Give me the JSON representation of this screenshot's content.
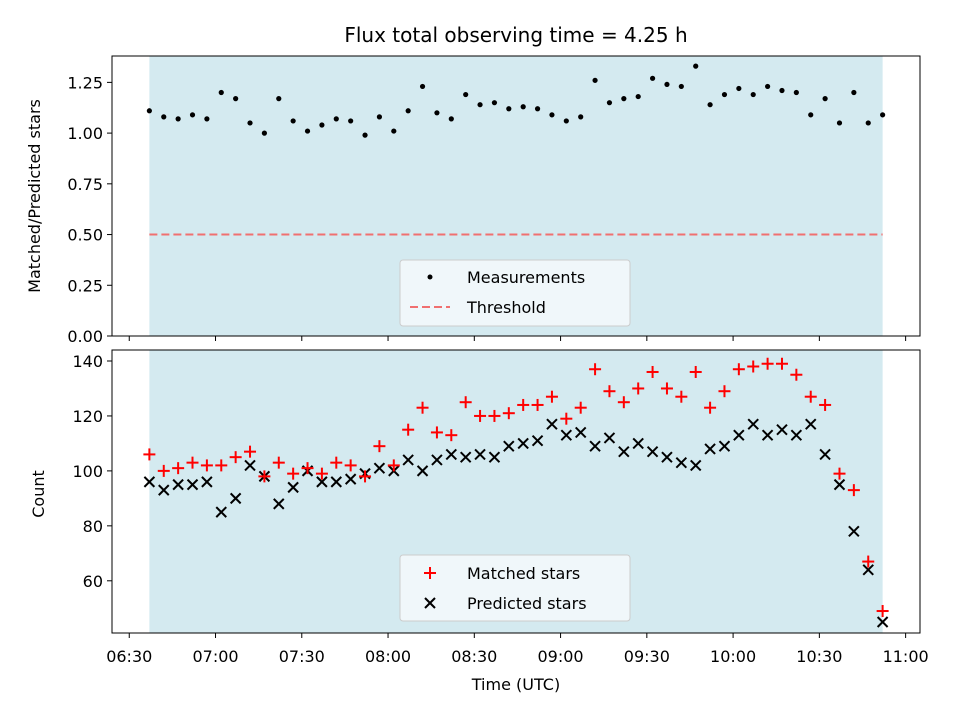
{
  "chart_data": {
    "type": "scatter",
    "title": "Flux total observing time = 4.25 h",
    "xlabel": "Time (UTC)",
    "xlim_minutes": [
      384,
      665
    ],
    "x_tick_labels": [
      "06:30",
      "07:00",
      "07:30",
      "08:00",
      "08:30",
      "09:00",
      "09:30",
      "10:00",
      "10:30",
      "11:00"
    ],
    "x_tick_minutes": [
      390,
      420,
      450,
      480,
      510,
      540,
      570,
      600,
      630,
      660
    ],
    "observing_window_minutes": [
      397,
      652
    ],
    "observing_window_color": "#d4eaf0",
    "x_minutes": [
      397,
      402,
      407,
      412,
      417,
      422,
      427,
      432,
      437,
      442,
      447,
      452,
      457,
      462,
      467,
      472,
      477,
      482,
      487,
      492,
      497,
      502,
      507,
      512,
      517,
      522,
      527,
      532,
      537,
      542,
      547,
      552,
      557,
      562,
      567,
      572,
      577,
      582,
      587,
      592,
      597,
      602,
      607,
      612,
      617,
      622,
      627,
      632,
      637,
      642,
      647,
      652
    ],
    "panels": [
      {
        "ylabel": "Matched/Predicted stars",
        "ylim": [
          0,
          1.38
        ],
        "y_tick_labels": [
          "0.00",
          "0.25",
          "0.50",
          "0.75",
          "1.00",
          "1.25"
        ],
        "y_ticks": [
          0,
          0.25,
          0.5,
          0.75,
          1.0,
          1.25
        ],
        "threshold": 0.5,
        "threshold_color": "#f07070",
        "series": [
          {
            "name": "Measurements",
            "marker": "dot",
            "color": "#000000",
            "values": [
              1.11,
              1.08,
              1.07,
              1.09,
              1.07,
              1.2,
              1.17,
              1.05,
              1.0,
              1.17,
              1.06,
              1.01,
              1.04,
              1.07,
              1.06,
              0.99,
              1.08,
              1.01,
              1.11,
              1.23,
              1.1,
              1.07,
              1.19,
              1.14,
              1.15,
              1.12,
              1.13,
              1.12,
              1.09,
              1.06,
              1.08,
              1.26,
              1.15,
              1.17,
              1.18,
              1.27,
              1.24,
              1.23,
              1.33,
              1.14,
              1.19,
              1.22,
              1.19,
              1.23,
              1.21,
              1.2,
              1.09,
              1.17,
              1.05,
              1.2,
              1.05,
              1.09
            ]
          }
        ],
        "legend": [
          {
            "label": "Measurements",
            "marker": "dot",
            "color": "#000000"
          },
          {
            "label": "Threshold",
            "marker": "dashed-line",
            "color": "#f07070"
          }
        ],
        "legend_placement": "lower-center"
      },
      {
        "ylabel": "Count",
        "ylim": [
          41,
          144
        ],
        "y_tick_labels": [
          "60",
          "80",
          "100",
          "120",
          "140"
        ],
        "y_ticks": [
          60,
          80,
          100,
          120,
          140
        ],
        "series": [
          {
            "name": "Matched stars",
            "marker": "plus",
            "color": "#ff0000",
            "values": [
              106,
              100,
              101,
              103,
              102,
              102,
              105,
              107,
              98,
              103,
              99,
              101,
              99,
              103,
              102,
              98,
              109,
              102,
              115,
              123,
              114,
              113,
              125,
              120,
              120,
              121,
              124,
              124,
              127,
              119,
              123,
              137,
              129,
              125,
              130,
              136,
              130,
              127,
              136,
              123,
              129,
              137,
              138,
              139,
              139,
              135,
              127,
              124,
              99,
              93,
              67,
              49
            ]
          },
          {
            "name": "Predicted stars",
            "marker": "x",
            "color": "#000000",
            "values": [
              96,
              93,
              95,
              95,
              96,
              85,
              90,
              102,
              98,
              88,
              94,
              100,
              96,
              96,
              97,
              99,
              101,
              100,
              104,
              100,
              104,
              106,
              105,
              106,
              105,
              109,
              110,
              111,
              117,
              113,
              114,
              109,
              112,
              107,
              110,
              107,
              105,
              103,
              102,
              108,
              109,
              113,
              117,
              113,
              115,
              113,
              117,
              106,
              95,
              78,
              64,
              45
            ]
          }
        ],
        "legend_placement": "lower-center"
      }
    ]
  }
}
